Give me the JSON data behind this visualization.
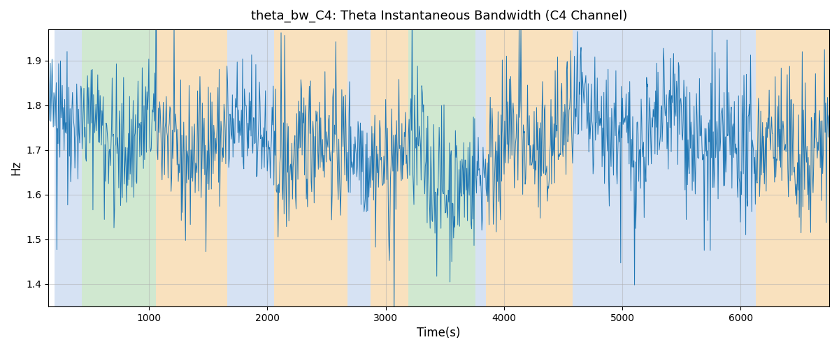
{
  "title": "theta_bw_C4: Theta Instantaneous Bandwidth (C4 Channel)",
  "xlabel": "Time(s)",
  "ylabel": "Hz",
  "ylim": [
    1.35,
    1.97
  ],
  "xlim": [
    150,
    6750
  ],
  "seed": 42,
  "n_points": 1300,
  "x_start": 150,
  "x_end": 6750,
  "mean": 1.705,
  "std": 0.075,
  "line_color": "#2077b4",
  "line_width": 0.7,
  "background_color": "#ffffff",
  "title_fontsize": 13,
  "axis_label_fontsize": 12,
  "bands": [
    {
      "start": 200,
      "end": 430,
      "color": "#aec6e8",
      "alpha": 0.5
    },
    {
      "start": 430,
      "end": 1060,
      "color": "#98cc98",
      "alpha": 0.45
    },
    {
      "start": 1060,
      "end": 1660,
      "color": "#f5c98a",
      "alpha": 0.55
    },
    {
      "start": 1660,
      "end": 2060,
      "color": "#aec6e8",
      "alpha": 0.5
    },
    {
      "start": 2060,
      "end": 2680,
      "color": "#f5c98a",
      "alpha": 0.55
    },
    {
      "start": 2680,
      "end": 2870,
      "color": "#aec6e8",
      "alpha": 0.5
    },
    {
      "start": 2870,
      "end": 3190,
      "color": "#f5c98a",
      "alpha": 0.55
    },
    {
      "start": 3190,
      "end": 3760,
      "color": "#98cc98",
      "alpha": 0.45
    },
    {
      "start": 3760,
      "end": 3850,
      "color": "#aec6e8",
      "alpha": 0.5
    },
    {
      "start": 3850,
      "end": 4580,
      "color": "#f5c98a",
      "alpha": 0.55
    },
    {
      "start": 4580,
      "end": 6130,
      "color": "#aec6e8",
      "alpha": 0.5
    },
    {
      "start": 6130,
      "end": 6750,
      "color": "#f5c98a",
      "alpha": 0.55
    }
  ],
  "grid_color": "#b0b0b0",
  "grid_alpha": 0.5,
  "grid_linewidth": 0.8,
  "figsize": [
    12.0,
    5.0
  ],
  "dpi": 100
}
